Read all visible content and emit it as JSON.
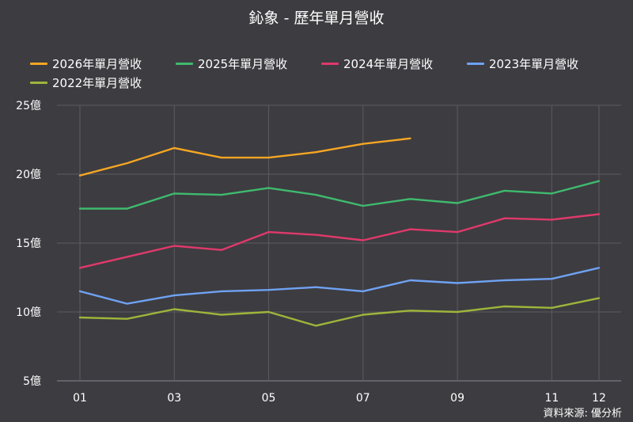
{
  "chart_data": {
    "type": "line",
    "title": "鈊象 - 歷年單月營收",
    "x": [
      "01",
      "02",
      "03",
      "04",
      "05",
      "06",
      "07",
      "08",
      "09",
      "10",
      "11",
      "12"
    ],
    "x_tick_labels": [
      "01",
      "03",
      "05",
      "07",
      "09",
      "11",
      "12"
    ],
    "y_tick_labels": [
      "25億",
      "20億",
      "15億",
      "10億",
      "5億"
    ],
    "ylim": [
      5,
      25
    ],
    "y_unit": "億",
    "grid": true,
    "legend_position": "top",
    "series": [
      {
        "name": "2026年單月營收",
        "color": "#f5a623",
        "values": [
          19.9,
          20.8,
          21.9,
          21.2,
          21.2,
          21.6,
          22.2,
          22.6,
          null,
          null,
          null,
          null
        ]
      },
      {
        "name": "2025年單月營收",
        "color": "#3fba6e",
        "values": [
          17.5,
          17.5,
          18.6,
          18.5,
          19.0,
          18.5,
          17.7,
          18.2,
          17.9,
          18.8,
          18.6,
          19.5
        ]
      },
      {
        "name": "2024年單月營收",
        "color": "#e0396b",
        "values": [
          13.2,
          14.0,
          14.8,
          14.5,
          15.8,
          15.6,
          15.2,
          16.0,
          15.8,
          16.8,
          16.7,
          17.1
        ]
      },
      {
        "name": "2023年單月營收",
        "color": "#6fa2f2",
        "values": [
          11.5,
          10.6,
          11.2,
          11.5,
          11.6,
          11.8,
          11.5,
          12.3,
          12.1,
          12.3,
          12.4,
          13.2
        ]
      },
      {
        "name": "2022年單月營收",
        "color": "#9db53a",
        "values": [
          9.6,
          9.5,
          10.2,
          9.8,
          10.0,
          9.0,
          9.8,
          10.1,
          10.0,
          10.4,
          10.3,
          11.0
        ]
      }
    ]
  },
  "source": "資料來源: 優分析"
}
